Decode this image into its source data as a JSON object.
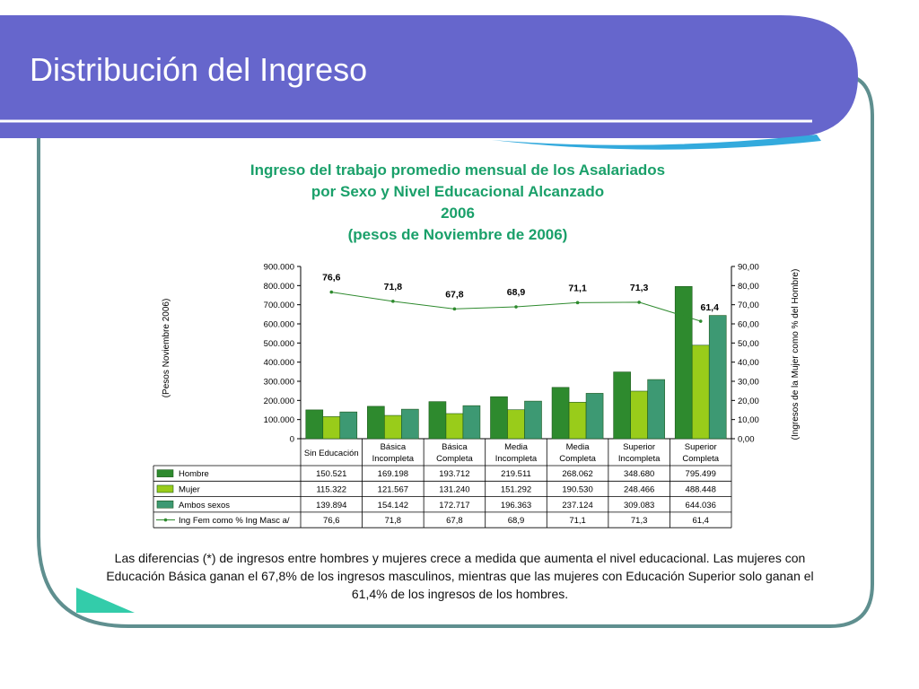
{
  "slide": {
    "title": "Distribución del Ingreso",
    "caption": "Las diferencias (*) de ingresos entre hombres y mujeres crece a medida que aumenta el nivel educacional. Las mujeres con Educación Básica ganan el 67,8% de los ingresos masculinos, mientras que las mujeres con Educación Superior solo ganan el 61,4% de los ingresos de los hombres.",
    "colors": {
      "banner": "#6666cc",
      "frame": "#5f8f8f",
      "accent": "#33ccaa"
    }
  },
  "chart_data": {
    "type": "bar",
    "title_lines": [
      "Ingreso del trabajo promedio mensual de los Asalariados",
      "por Sexo y Nivel Educacional Alcanzado",
      "2006",
      "(pesos de Noviembre de 2006)"
    ],
    "ylabel": "(Pesos Noviembre 2006)",
    "y2label": "(Ingresos de la Mujer como % del Hombre)",
    "ylim": [
      0,
      900000
    ],
    "y2lim": [
      0,
      90
    ],
    "y_ticks": [
      "900.000",
      "800.000",
      "700.000",
      "600.000",
      "500.000",
      "400.000",
      "300.000",
      "200.000",
      "100.000",
      "0"
    ],
    "y2_ticks": [
      "90,00",
      "80,00",
      "70,00",
      "60,00",
      "50,00",
      "40,00",
      "30,00",
      "20,00",
      "10,00",
      "0,00"
    ],
    "categories": [
      [
        "Sin Educación"
      ],
      [
        "Básica",
        "Incompleta"
      ],
      [
        "Básica",
        "Completa"
      ],
      [
        "Media",
        "Incompleta"
      ],
      [
        "Media",
        "Completa"
      ],
      [
        "Superior",
        "Incompleta"
      ],
      [
        "Superior",
        "Completa"
      ]
    ],
    "series": [
      {
        "name": "Hombre",
        "kind": "bar",
        "color": "#2e8a2e",
        "values": [
          150521,
          169198,
          193712,
          219511,
          268062,
          348680,
          795499
        ],
        "labels": [
          "150.521",
          "169.198",
          "193.712",
          "219.511",
          "268.062",
          "348.680",
          "795.499"
        ]
      },
      {
        "name": "Mujer",
        "kind": "bar",
        "color": "#99cc1a",
        "values": [
          115322,
          121567,
          131240,
          151292,
          190530,
          248466,
          488448
        ],
        "labels": [
          "115.322",
          "121.567",
          "131.240",
          "151.292",
          "190.530",
          "248.466",
          "488.448"
        ]
      },
      {
        "name": "Ambos sexos",
        "kind": "bar",
        "color": "#3d9973",
        "values": [
          139894,
          154142,
          172717,
          196363,
          237124,
          309083,
          644036
        ],
        "labels": [
          "139.894",
          "154.142",
          "172.717",
          "196.363",
          "237.124",
          "309.083",
          "644.036"
        ]
      },
      {
        "name": "Ing Fem como % Ing Masc a/",
        "kind": "line",
        "axis": "right",
        "color": "#2e8a2e",
        "values": [
          76.6,
          71.8,
          67.8,
          68.9,
          71.1,
          71.3,
          61.4
        ],
        "labels": [
          "76,6",
          "71,8",
          "67,8",
          "68,9",
          "71,1",
          "71,3",
          "61,4"
        ]
      }
    ],
    "grid": false,
    "legend": "table below chart"
  }
}
